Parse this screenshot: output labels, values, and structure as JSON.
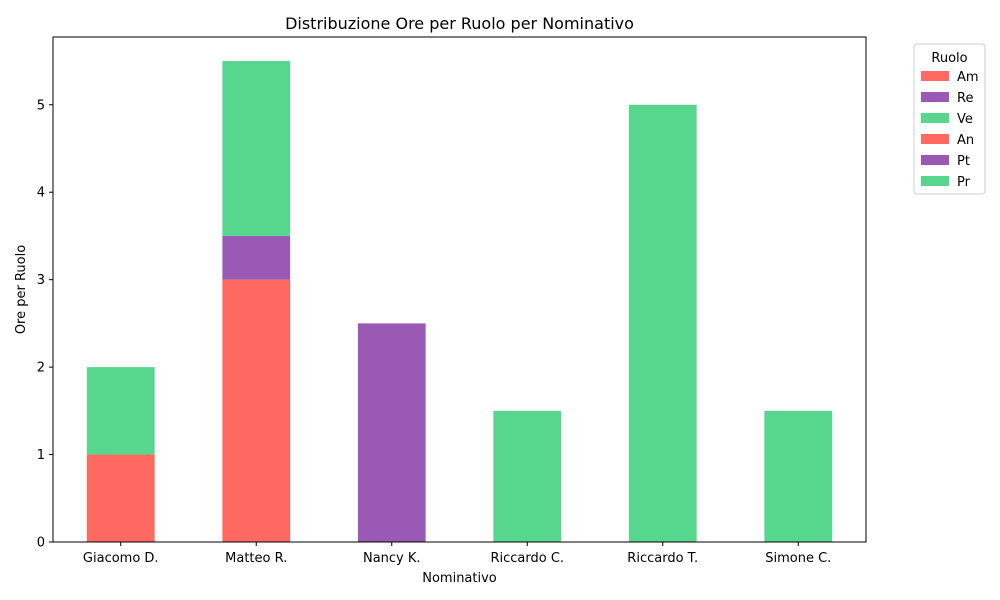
{
  "chart_data": {
    "type": "bar",
    "stacked": true,
    "title": "Distribuzione Ore per Ruolo per Nominativo",
    "xlabel": "Nominativo",
    "ylabel": "Ore per Ruolo",
    "ylim": [
      0,
      5.775
    ],
    "yticks": [
      0,
      1,
      2,
      3,
      4,
      5
    ],
    "grid": false,
    "legend_title": "Ruolo",
    "legend_position": "outside-top-right",
    "categories": [
      "Giacomo D.",
      "Matteo R.",
      "Nancy K.",
      "Riccardo C.",
      "Riccardo T.",
      "Simone C."
    ],
    "series": [
      {
        "name": "Am",
        "color": "#ff6961",
        "values": [
          1.0,
          3.0,
          0,
          0,
          0,
          0
        ]
      },
      {
        "name": "Re",
        "color": "#9b59b6",
        "values": [
          0,
          0.5,
          0,
          0,
          0,
          0
        ]
      },
      {
        "name": "Ve",
        "color": "#57d68d",
        "values": [
          1.0,
          2.0,
          0,
          0,
          0,
          0
        ]
      },
      {
        "name": "An",
        "color": "#ff6961",
        "values": [
          0,
          0,
          0,
          0,
          0,
          0
        ]
      },
      {
        "name": "Pt",
        "color": "#9b59b6",
        "values": [
          0,
          0,
          2.5,
          0,
          0,
          0
        ]
      },
      {
        "name": "Pr",
        "color": "#57d68d",
        "values": [
          0,
          0,
          0,
          1.5,
          5.0,
          1.5
        ]
      }
    ]
  }
}
